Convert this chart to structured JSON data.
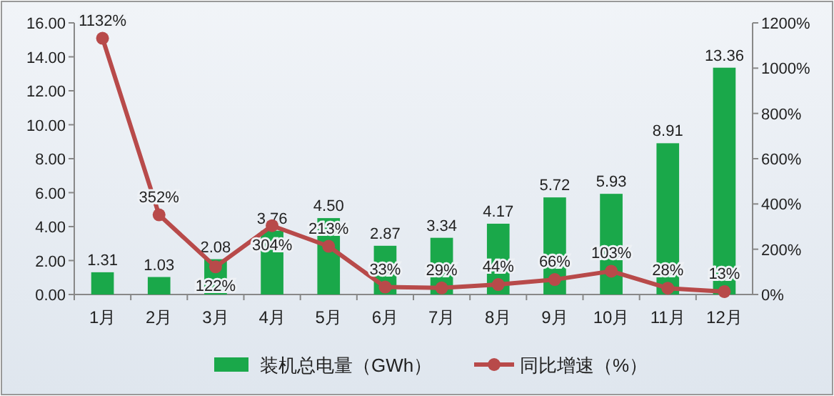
{
  "chart_data": {
    "type": "bar",
    "categories": [
      "1月",
      "2月",
      "3月",
      "4月",
      "5月",
      "6月",
      "7月",
      "8月",
      "9月",
      "10月",
      "11月",
      "12月"
    ],
    "series": [
      {
        "name": "装机总电量（GWh）",
        "color": "#1aa84a",
        "values": [
          1.31,
          1.03,
          2.08,
          3.76,
          4.5,
          2.87,
          3.34,
          4.17,
          5.72,
          5.93,
          8.91,
          13.36
        ],
        "value_labels": [
          "1.31",
          "1.03",
          "2.08",
          "3.76",
          "4.50",
          "2.87",
          "3.34",
          "4.17",
          "5.72",
          "5.93",
          "8.91",
          "13.36"
        ]
      },
      {
        "name": "同比增速（%）",
        "type": "line",
        "axis": "y2",
        "color": "#b84a4a",
        "marker": "circle",
        "values": [
          1132,
          352,
          122,
          304,
          213,
          33,
          29,
          44,
          66,
          103,
          28,
          13
        ],
        "value_labels": [
          "1132%",
          "352%",
          "122%",
          "304%",
          "213%",
          "33%",
          "29%",
          "44%",
          "66%",
          "103%",
          "28%",
          "13%"
        ]
      }
    ],
    "ylim": [
      0,
      16
    ],
    "yticks": [
      {
        "value": 0,
        "label": "0.00"
      },
      {
        "value": 2,
        "label": "2.00"
      },
      {
        "value": 4,
        "label": "4.00"
      },
      {
        "value": 6,
        "label": "6.00"
      },
      {
        "value": 8,
        "label": "8.00"
      },
      {
        "value": 10,
        "label": "10.00"
      },
      {
        "value": 12,
        "label": "12.00"
      },
      {
        "value": 14,
        "label": "14.00"
      },
      {
        "value": 16,
        "label": "16.00"
      }
    ],
    "y2lim": [
      0,
      1200
    ],
    "y2ticks": [
      {
        "value": 0,
        "label": "0%"
      },
      {
        "value": 200,
        "label": "200%"
      },
      {
        "value": 400,
        "label": "400%"
      },
      {
        "value": 600,
        "label": "600%"
      },
      {
        "value": 800,
        "label": "800%"
      },
      {
        "value": 1000,
        "label": "1000%"
      },
      {
        "value": 1200,
        "label": "1200%"
      }
    ],
    "legend": "bottom",
    "grid": false
  }
}
